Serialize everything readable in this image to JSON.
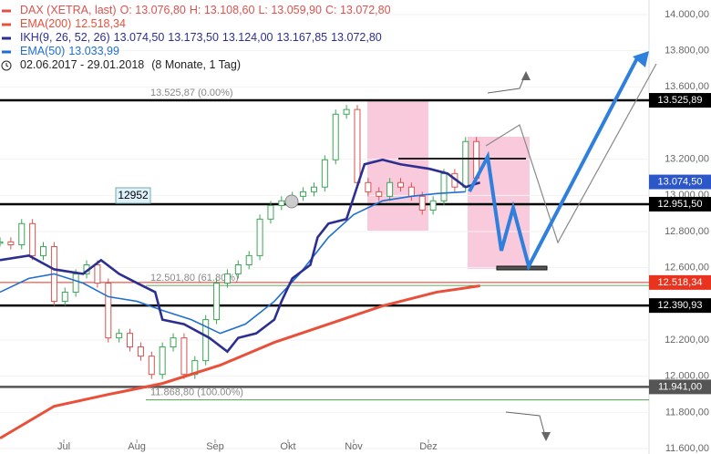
{
  "chart_data": {
    "type": "candlestick",
    "legend": [
      {
        "name": "DAX (XETRA, last)",
        "color": "#d9534f",
        "values": [
          "O: 13.076,80",
          "H: 13.108,60",
          "L: 13.059,90",
          "C: 13.072,80"
        ]
      },
      {
        "name": "EMA(200)",
        "color": "#e8503a",
        "values": [
          "12.518,34"
        ]
      },
      {
        "name": "IKH(9, 26, 52, 26)",
        "color": "#2c2f8f",
        "values": [
          "13.074,50",
          "13.173,50",
          "13.124,00",
          "13.167,85",
          "13.072,80"
        ]
      },
      {
        "name": "EMA(50)",
        "color": "#1f6fd1",
        "values": [
          "13.033,99"
        ]
      },
      {
        "name": "02.06.2017 - 29.01.2018",
        "color": "#222222",
        "values": [
          "(8 Monate, 1 Tag)"
        ]
      }
    ],
    "xlim": [
      0,
      197
    ],
    "xticks": [
      {
        "value": 17.7,
        "label": "Jul"
      },
      {
        "value": 37.9,
        "label": "Aug"
      },
      {
        "value": 59.6,
        "label": "Sep"
      },
      {
        "value": 79.8,
        "label": "Okt"
      },
      {
        "value": 98,
        "label": "Nov"
      },
      {
        "value": 118.7,
        "label": "Dez"
      }
    ],
    "ylim": [
      11590,
      14000
    ],
    "yticks": [
      {
        "value": 14000,
        "label": "14.000,00"
      },
      {
        "value": 13800,
        "label": "13.800,00"
      },
      {
        "value": 13600,
        "label": "13.600,00"
      },
      {
        "value": 13200,
        "label": "13.200,00"
      },
      {
        "value": 13000,
        "label": "13.000,00"
      },
      {
        "value": 12800,
        "label": "12.800,00"
      },
      {
        "value": 12600,
        "label": "12.600,00"
      },
      {
        "value": 12200,
        "label": "12.200,00"
      },
      {
        "value": 12000,
        "label": "12.000,00"
      },
      {
        "value": 11800,
        "label": "11.800,00"
      },
      {
        "value": 11600,
        "label": "11.600,00"
      }
    ],
    "x": [
      0,
      3,
      6,
      9,
      12,
      15,
      18,
      21,
      24,
      27,
      30,
      33,
      36,
      39,
      42,
      45,
      48,
      51,
      54,
      57,
      60,
      63,
      66,
      69,
      72,
      75,
      78,
      81,
      84,
      87,
      90,
      93,
      96,
      99,
      102,
      105,
      108,
      111,
      114,
      117,
      120,
      123,
      126,
      129,
      132
    ],
    "close": [
      12743,
      12727,
      12844,
      12667,
      12717,
      12414,
      12465,
      12566,
      12616,
      12515,
      12212,
      12237,
      12162,
      12111,
      12010,
      12162,
      12212,
      12010,
      12086,
      12313,
      12515,
      12566,
      12616,
      12667,
      12869,
      12944,
      12970,
      12995,
      13020,
      13046,
      13197,
      13449,
      13475,
      13071,
      13020,
      12995,
      13071,
      13046,
      12995,
      12919,
      12970,
      13121,
      13046,
      13298,
      13096
    ],
    "up_color": "#3aa655",
    "down_color": "#d9534f",
    "lines": [
      {
        "name": "EMA(200)",
        "color": "#e8503a",
        "width": 3,
        "x": [
          0,
          15,
          30,
          45,
          61,
          76,
          91,
          106,
          121,
          133
        ],
        "values": [
          11657,
          11834,
          11899,
          11960,
          12061,
          12187,
          12288,
          12389,
          12465,
          12500
        ]
      },
      {
        "name": "EMA(50)",
        "color": "#1f6fd1",
        "width": 1.6,
        "x": [
          0,
          8,
          15,
          23,
          30,
          38,
          45,
          53,
          61,
          68,
          76,
          83,
          91,
          98,
          106,
          114,
          121,
          129
        ],
        "values": [
          12465,
          12541,
          12566,
          12515,
          12440,
          12414,
          12364,
          12313,
          12237,
          12288,
          12414,
          12566,
          12768,
          12894,
          12970,
          12995,
          13010,
          13020
        ]
      },
      {
        "name": "IKH(9, 26, 52, 26)",
        "color": "#2c2f8f",
        "width": 2.6,
        "x": [
          0,
          8,
          15,
          23,
          28,
          33,
          38,
          43,
          45,
          51,
          58,
          63,
          66,
          71,
          76,
          78,
          81,
          86,
          88,
          91,
          96,
          101,
          106,
          111,
          119,
          124,
          129,
          133
        ],
        "values": [
          12642,
          12667,
          12591,
          12566,
          12642,
          12566,
          12515,
          12465,
          12313,
          12288,
          12212,
          12136,
          12212,
          12237,
          12313,
          12414,
          12541,
          12616,
          12768,
          12844,
          12869,
          13172,
          13197,
          13172,
          13147,
          13121,
          13046,
          13071
        ]
      }
    ],
    "levels": [
      {
        "value": 13525.89,
        "label": "13.525,89",
        "color": "#000000"
      },
      {
        "value": 13074.5,
        "label": "13.074,50",
        "color": "#2c57c8"
      },
      {
        "value": 12951.5,
        "label": "12.951,50",
        "color": "#000000"
      },
      {
        "value": 12518.34,
        "label": "12.518,34",
        "color": "#e8331f"
      },
      {
        "value": 12390.93,
        "label": "12.390,93",
        "color": "#000000"
      },
      {
        "value": 11941,
        "label": "11.941,00",
        "color": "#555555"
      }
    ],
    "fib": [
      {
        "value": 13525.87,
        "label": "13.525,87 (0.00%)"
      },
      {
        "value": 12501.8,
        "label": "12.501,80 (61.80%)"
      },
      {
        "value": 11868.8,
        "label": "11.868,80 (100.00%)"
      }
    ],
    "marker_label": "12952"
  }
}
